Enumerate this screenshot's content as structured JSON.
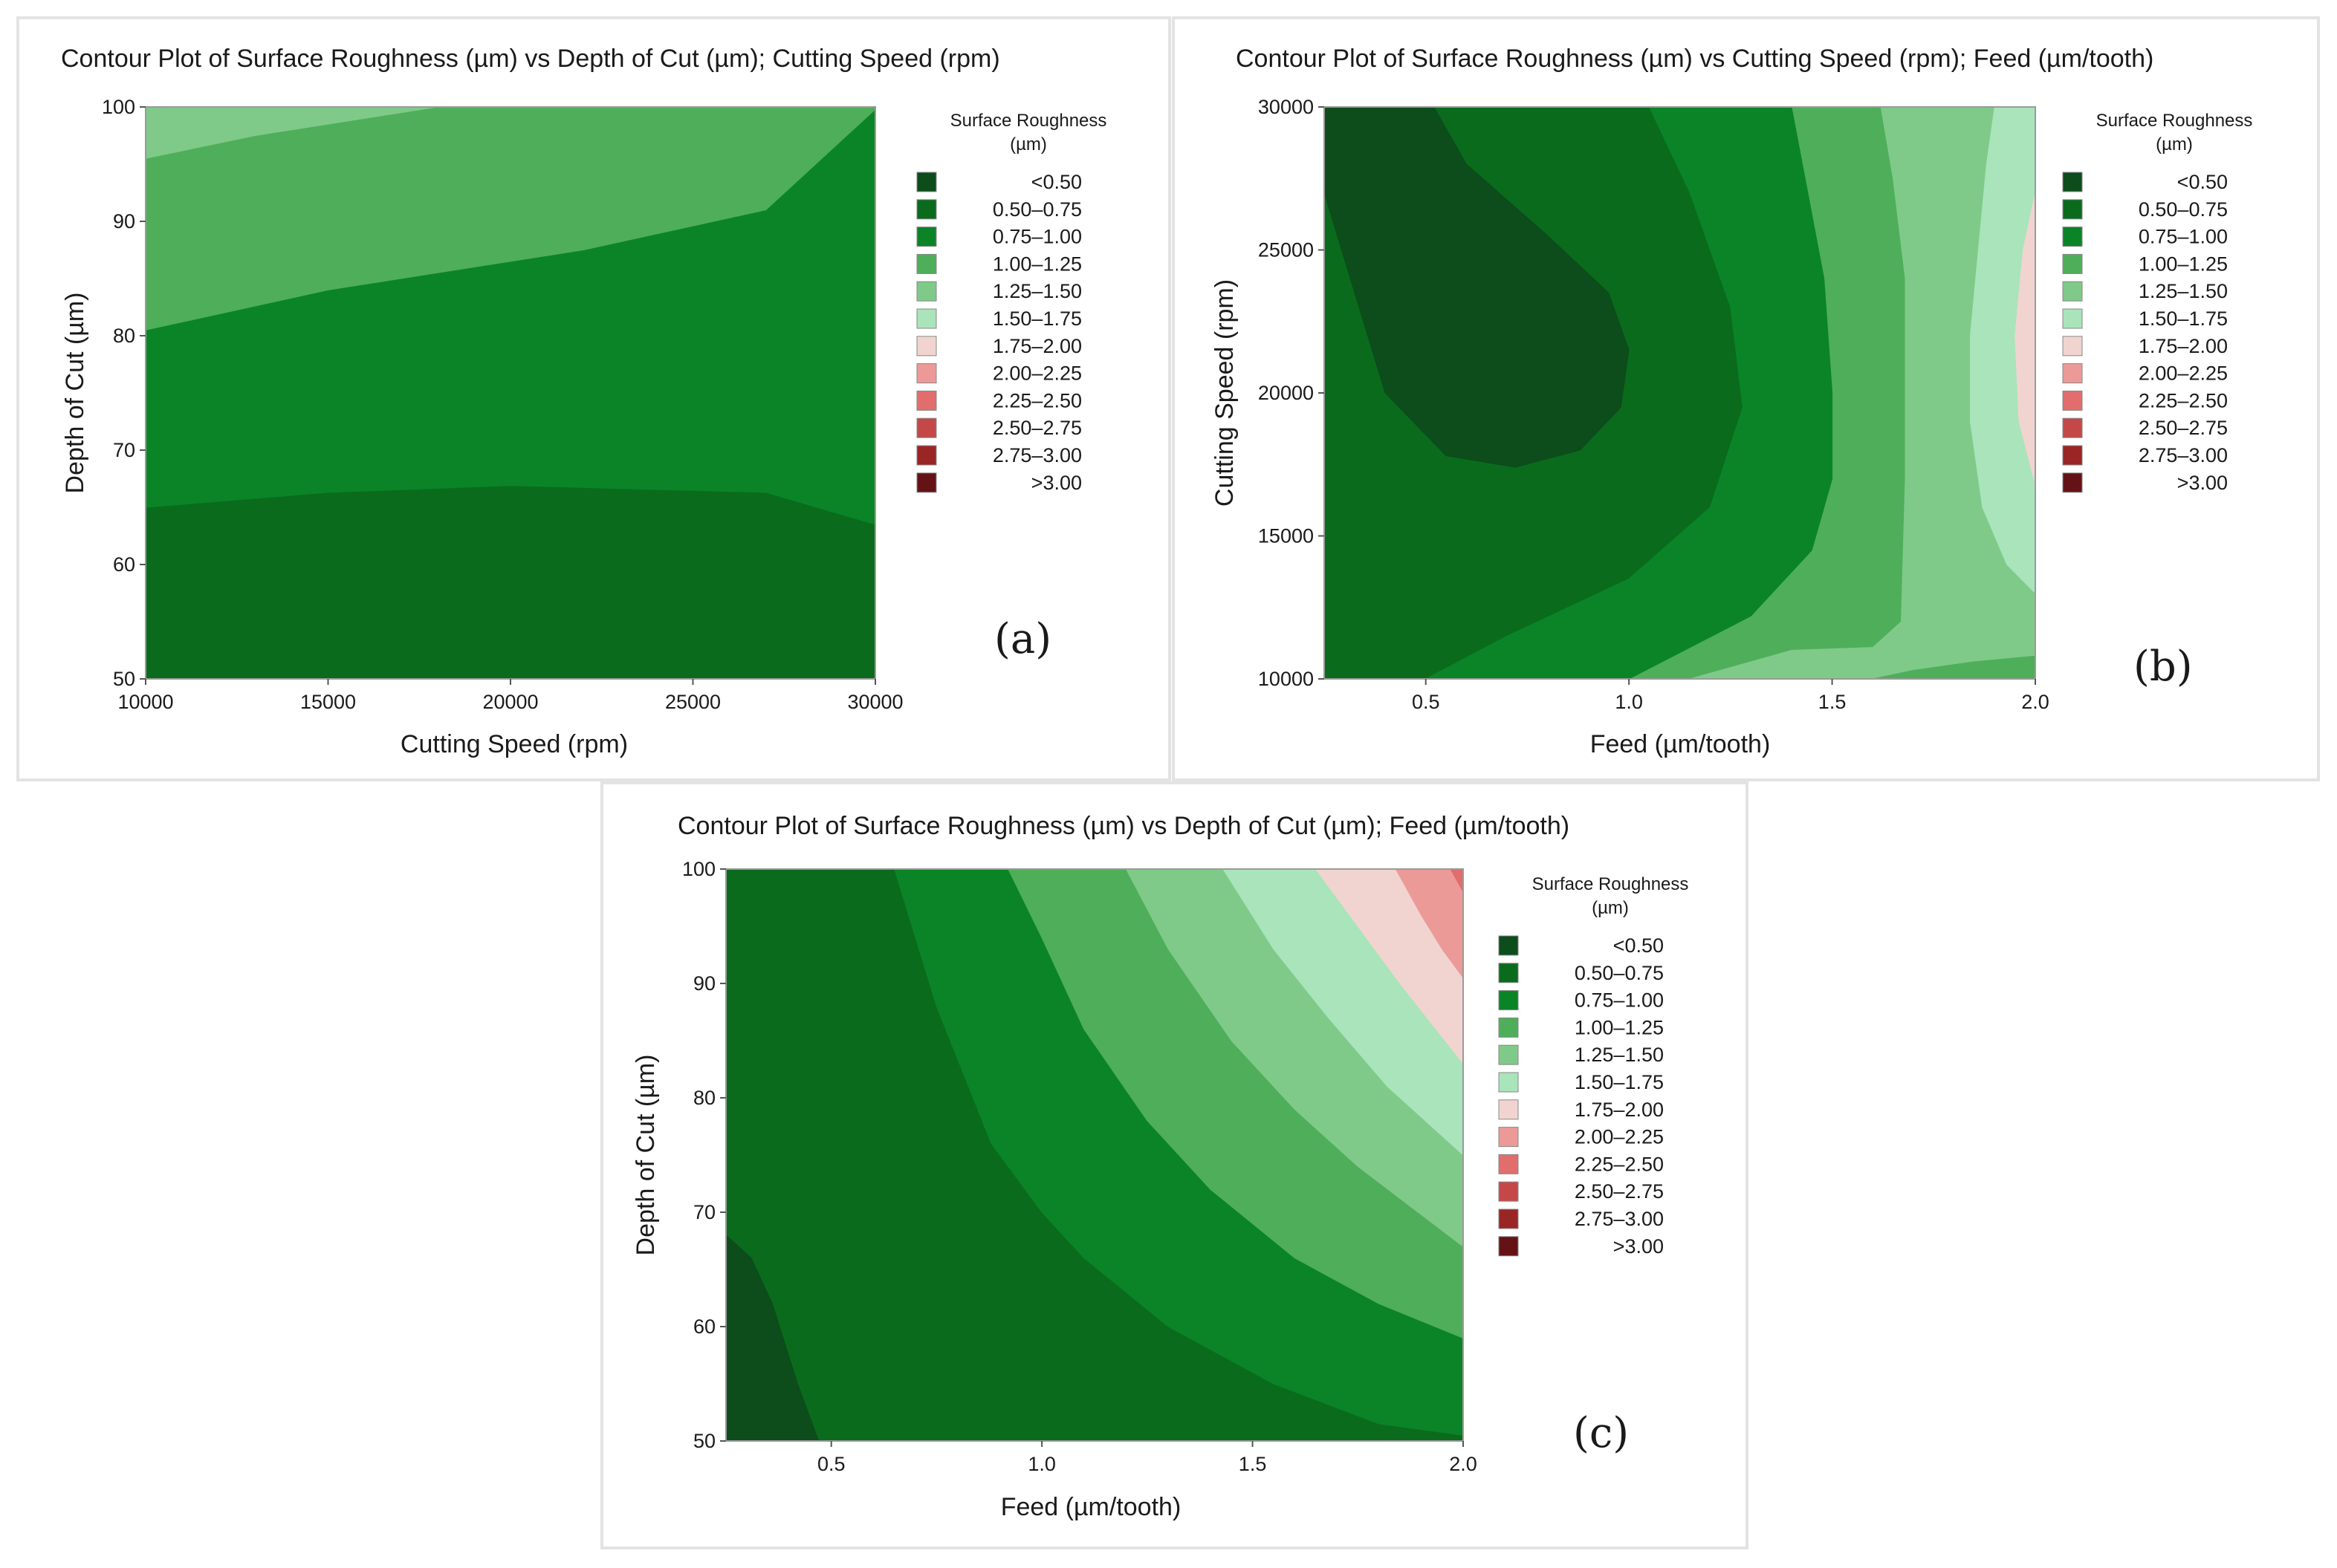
{
  "legend": {
    "title_line1": "Surface Roughness",
    "title_line2": "(µm)",
    "items": [
      {
        "label": "<0.50",
        "color": "#0c4d1b"
      },
      {
        "label": "0.50–0.75",
        "color": "#0a6b1d"
      },
      {
        "label": "0.75–1.00",
        "color": "#0a8427"
      },
      {
        "label": "1.00–1.25",
        "color": "#4fae5a"
      },
      {
        "label": "1.25–1.50",
        "color": "#7fca89"
      },
      {
        "label": "1.50–1.75",
        "color": "#a9e4bb"
      },
      {
        "label": "1.75–2.00",
        "color": "#f1d4cf"
      },
      {
        "label": "2.00–2.25",
        "color": "#ec9a98"
      },
      {
        "label": "2.25–2.50",
        "color": "#e16d6d"
      },
      {
        "label": "2.50–2.75",
        "color": "#c54848"
      },
      {
        "label": "2.75–3.00",
        "color": "#9a2525"
      },
      {
        "label": ">3.00",
        "color": "#651217"
      }
    ]
  },
  "chart_data": [
    {
      "panel_label": "(a)",
      "type": "contour",
      "title": "Contour Plot of Surface Roughness (µm) vs Depth of Cut (µm); Cutting Speed (rpm)",
      "xlabel": "Cutting Speed (rpm)",
      "ylabel": "Depth of Cut (µm)",
      "xlim": [
        10000,
        30000
      ],
      "ylim": [
        50,
        100
      ],
      "xticks": [
        10000,
        15000,
        20000,
        25000,
        30000
      ],
      "yticks": [
        50,
        60,
        70,
        80,
        90,
        100
      ],
      "xtick_labels": [
        "10000",
        "15000",
        "20000",
        "25000",
        "30000"
      ],
      "ytick_labels": [
        "50",
        "60",
        "70",
        "80",
        "90",
        "100"
      ],
      "regions": [
        {
          "level": "0.50–0.75",
          "color": "#0a6b1d",
          "points": [
            [
              10000,
              50
            ],
            [
              30000,
              50
            ],
            [
              30000,
              63.5
            ],
            [
              27000,
              66.3
            ],
            [
              20000,
              66.9
            ],
            [
              15000,
              66.3
            ],
            [
              10000,
              65
            ]
          ]
        },
        {
          "level": "0.75–1.00",
          "color": "#0a8427",
          "points": [
            [
              10000,
              65
            ],
            [
              15000,
              66.3
            ],
            [
              20000,
              66.9
            ],
            [
              27000,
              66.3
            ],
            [
              30000,
              63.5
            ],
            [
              30000,
              99.8
            ],
            [
              27000,
              91
            ],
            [
              22000,
              87.5
            ],
            [
              15000,
              84
            ],
            [
              10000,
              80.5
            ]
          ]
        },
        {
          "level": "1.00–1.25",
          "color": "#4fae5a",
          "points": [
            [
              10000,
              80.5
            ],
            [
              15000,
              84
            ],
            [
              22000,
              87.5
            ],
            [
              27000,
              91
            ],
            [
              30000,
              99.8
            ],
            [
              30000,
              100
            ],
            [
              18000,
              100
            ],
            [
              13000,
              97.5
            ],
            [
              10000,
              95.5
            ]
          ]
        },
        {
          "level": "1.25–1.50",
          "color": "#7fca89",
          "points": [
            [
              10000,
              95.5
            ],
            [
              13000,
              97.5
            ],
            [
              18000,
              100
            ],
            [
              10000,
              100
            ]
          ]
        }
      ]
    },
    {
      "panel_label": "(b)",
      "type": "contour",
      "title": "Contour Plot of Surface Roughness (µm) vs Cutting Speed (rpm); Feed (µm/tooth)",
      "xlabel": "Feed (µm/tooth)",
      "ylabel": "Cutting Speed (rpm)",
      "xlim": [
        0.25,
        2.0
      ],
      "ylim": [
        10000,
        30000
      ],
      "xticks": [
        0.5,
        1.0,
        1.5,
        2.0
      ],
      "yticks": [
        10000,
        15000,
        20000,
        25000,
        30000
      ],
      "xtick_labels": [
        "0.5",
        "1.0",
        "1.5",
        "2.0"
      ],
      "ytick_labels": [
        "10000",
        "15000",
        "20000",
        "25000",
        "30000"
      ],
      "regions": [
        {
          "level": "0.50–0.75",
          "color": "#0a6b1d",
          "points": [
            [
              0.25,
              10000
            ],
            [
              0.5,
              10000
            ],
            [
              0.7,
              11500
            ],
            [
              1.0,
              13500
            ],
            [
              1.2,
              16000
            ],
            [
              1.28,
              19500
            ],
            [
              1.25,
              23000
            ],
            [
              1.15,
              27000
            ],
            [
              1.05,
              30000
            ],
            [
              0.25,
              30000
            ]
          ]
        },
        {
          "level": "<0.50",
          "color": "#0c4d1b",
          "points": [
            [
              0.25,
              27000
            ],
            [
              0.4,
              20000
            ],
            [
              0.55,
              17800
            ],
            [
              0.72,
              17400
            ],
            [
              0.88,
              18000
            ],
            [
              0.98,
              19500
            ],
            [
              1.0,
              21500
            ],
            [
              0.95,
              23500
            ],
            [
              0.8,
              25500
            ],
            [
              0.6,
              28000
            ],
            [
              0.52,
              30000
            ],
            [
              0.25,
              30000
            ]
          ]
        },
        {
          "level": "1.00–1.25",
          "color": "#4fae5a",
          "points": [
            [
              1.0,
              10000
            ],
            [
              1.3,
              12200
            ],
            [
              1.45,
              14500
            ],
            [
              1.5,
              17000
            ],
            [
              1.5,
              20000
            ],
            [
              1.48,
              24000
            ],
            [
              1.44,
              27000
            ],
            [
              1.4,
              30000
            ],
            [
              1.9,
              30000
            ],
            [
              1.9,
              10000
            ]
          ]
        },
        {
          "level": "0.75–1.00",
          "color": "#0a8427",
          "points": [
            [
              0.5,
              10000
            ],
            [
              0.7,
              11500
            ],
            [
              1.0,
              13500
            ],
            [
              1.2,
              16000
            ],
            [
              1.28,
              19500
            ],
            [
              1.25,
              23000
            ],
            [
              1.15,
              27000
            ],
            [
              1.05,
              30000
            ],
            [
              1.4,
              30000
            ],
            [
              1.44,
              27000
            ],
            [
              1.48,
              24000
            ],
            [
              1.5,
              20000
            ],
            [
              1.5,
              17000
            ],
            [
              1.45,
              14500
            ],
            [
              1.3,
              12200
            ],
            [
              1.0,
              10000
            ]
          ]
        },
        {
          "level": "1.25–1.50",
          "color": "#7fca89",
          "points": [
            [
              1.15,
              10000
            ],
            [
              1.4,
              11000
            ],
            [
              1.6,
              11100
            ],
            [
              1.67,
              12000
            ],
            [
              1.68,
              17000
            ],
            [
              1.68,
              24000
            ],
            [
              1.65,
              27500
            ],
            [
              1.62,
              30000
            ],
            [
              2.0,
              30000
            ],
            [
              2.0,
              10000
            ]
          ]
        },
        {
          "level": "1.00–1.25",
          "color": "#4fae5a",
          "points": [
            [
              1.6,
              10000
            ],
            [
              2.0,
              10000
            ],
            [
              2.0,
              10800
            ],
            [
              1.85,
              10600
            ],
            [
              1.7,
              10300
            ]
          ]
        },
        {
          "level": "1.50–1.75",
          "color": "#a9e4bb",
          "points": [
            [
              1.9,
              30000
            ],
            [
              2.0,
              30000
            ],
            [
              2.0,
              13000
            ],
            [
              1.93,
              14000
            ],
            [
              1.87,
              16000
            ],
            [
              1.84,
              19000
            ],
            [
              1.84,
              22000
            ],
            [
              1.86,
              25000
            ],
            [
              1.88,
              28000
            ]
          ]
        },
        {
          "level": "1.75–2.00",
          "color": "#f1d4cf",
          "points": [
            [
              2.0,
              27000
            ],
            [
              1.97,
              25000
            ],
            [
              1.95,
              22000
            ],
            [
              1.96,
              19000
            ],
            [
              2.0,
              16800
            ]
          ]
        }
      ]
    },
    {
      "panel_label": "(c)",
      "type": "contour",
      "title": "Contour Plot of Surface Roughness (µm) vs Depth of Cut (µm); Feed (µm/tooth)",
      "xlabel": "Feed (µm/tooth)",
      "ylabel": "Depth of Cut (µm)",
      "xlim": [
        0.25,
        2.0
      ],
      "ylim": [
        50,
        100
      ],
      "xticks": [
        0.5,
        1.0,
        1.5,
        2.0
      ],
      "yticks": [
        50,
        60,
        70,
        80,
        90,
        100
      ],
      "xtick_labels": [
        "0.5",
        "1.0",
        "1.5",
        "2.0"
      ],
      "ytick_labels": [
        "50",
        "60",
        "70",
        "80",
        "90",
        "100"
      ],
      "regions": [
        {
          "level": "0.50–0.75",
          "color": "#0a6b1d",
          "points": [
            [
              0.25,
              50
            ],
            [
              2.0,
              50
            ],
            [
              2.0,
              100
            ],
            [
              0.25,
              100
            ]
          ]
        },
        {
          "level": "<0.50",
          "color": "#0c4d1b",
          "points": [
            [
              0.25,
              50
            ],
            [
              0.47,
              50
            ],
            [
              0.42,
              55
            ],
            [
              0.36,
              62
            ],
            [
              0.31,
              66
            ],
            [
              0.25,
              68
            ]
          ]
        },
        {
          "level": "0.75–1.00",
          "color": "#0a8427",
          "points": [
            [
              0.65,
              100
            ],
            [
              0.75,
              88
            ],
            [
              0.88,
              76
            ],
            [
              1.0,
              70
            ],
            [
              1.1,
              66
            ],
            [
              1.3,
              60
            ],
            [
              1.55,
              55
            ],
            [
              1.8,
              51.5
            ],
            [
              2.0,
              50.5
            ],
            [
              2.0,
              100
            ]
          ]
        },
        {
          "level": "1.00–1.25",
          "color": "#4fae5a",
          "points": [
            [
              0.92,
              100
            ],
            [
              1.0,
              94
            ],
            [
              1.1,
              86
            ],
            [
              1.25,
              78
            ],
            [
              1.4,
              72
            ],
            [
              1.6,
              66
            ],
            [
              1.8,
              62
            ],
            [
              2.0,
              59
            ],
            [
              2.0,
              100
            ]
          ]
        },
        {
          "level": "1.25–1.50",
          "color": "#7fca89",
          "points": [
            [
              1.2,
              100
            ],
            [
              1.3,
              93
            ],
            [
              1.45,
              85
            ],
            [
              1.6,
              79
            ],
            [
              1.75,
              74
            ],
            [
              2.0,
              67
            ],
            [
              2.0,
              100
            ]
          ]
        },
        {
          "level": "1.50–1.75",
          "color": "#a9e4bb",
          "points": [
            [
              1.43,
              100
            ],
            [
              1.55,
              93
            ],
            [
              1.68,
              87
            ],
            [
              1.82,
              81
            ],
            [
              2.0,
              75
            ],
            [
              2.0,
              100
            ]
          ]
        },
        {
          "level": "1.75–2.00",
          "color": "#f1d4cf",
          "points": [
            [
              1.65,
              100
            ],
            [
              1.75,
              95
            ],
            [
              1.85,
              90
            ],
            [
              2.0,
              83
            ],
            [
              2.0,
              100
            ]
          ]
        },
        {
          "level": "2.00–2.25",
          "color": "#ec9a98",
          "points": [
            [
              1.84,
              100
            ],
            [
              1.9,
              96
            ],
            [
              1.95,
              93
            ],
            [
              2.0,
              90.5
            ],
            [
              2.0,
              100
            ]
          ]
        },
        {
          "level": "2.25–2.50",
          "color": "#e16d6d",
          "points": [
            [
              1.97,
              100
            ],
            [
              2.0,
              98
            ],
            [
              2.0,
              100
            ]
          ]
        }
      ]
    }
  ]
}
